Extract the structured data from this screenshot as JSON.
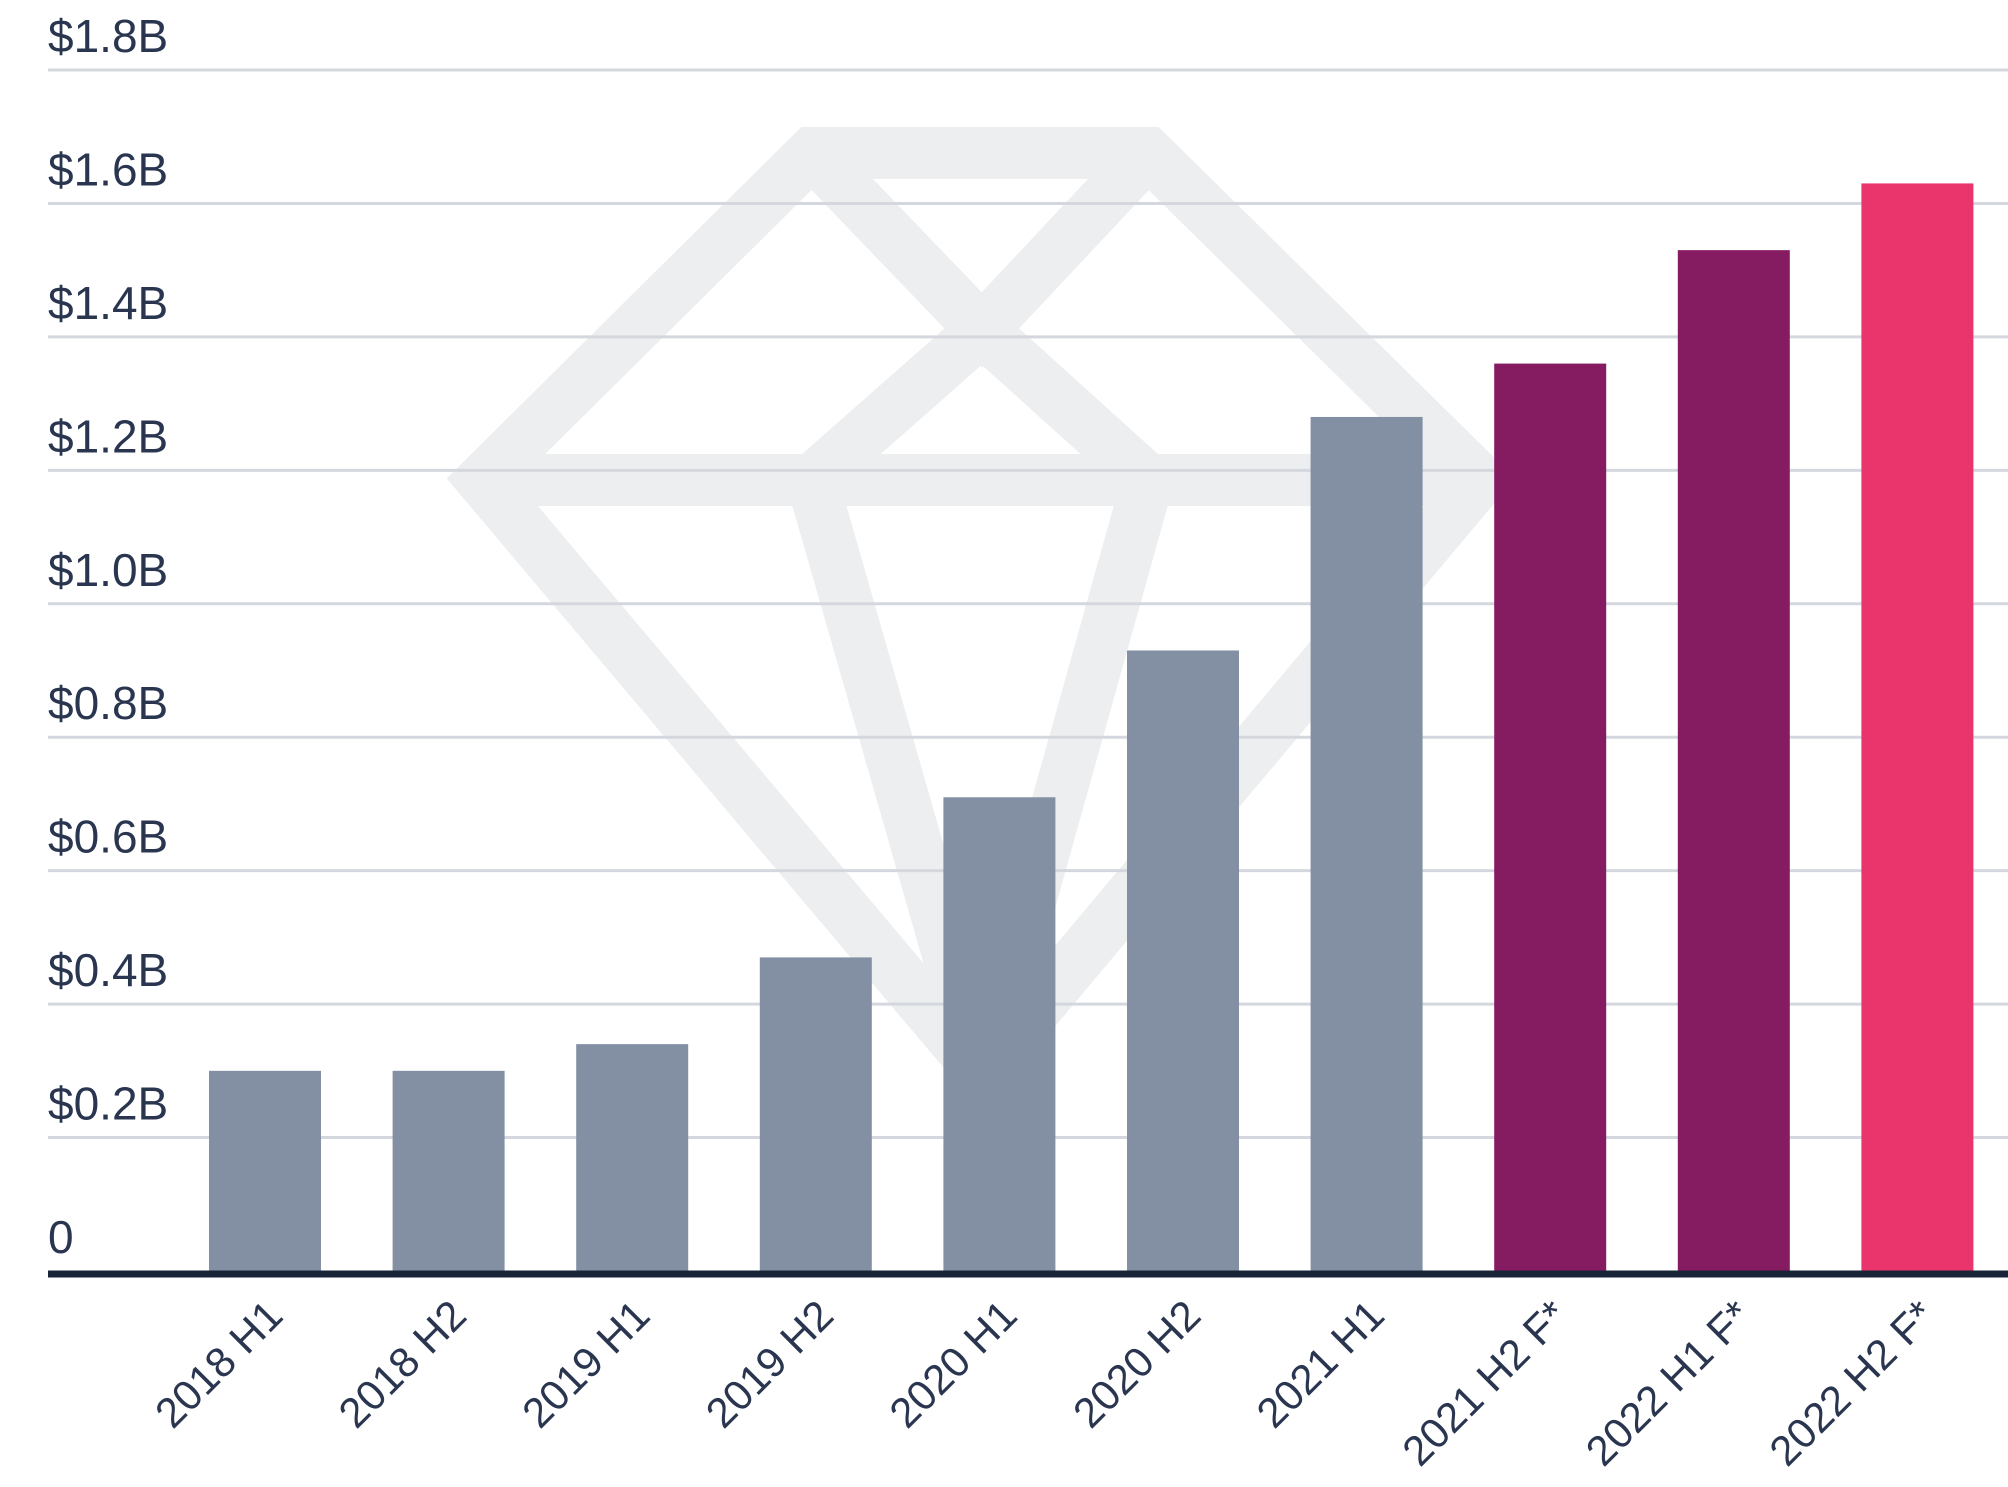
{
  "chart_data": {
    "type": "bar",
    "title": "",
    "xlabel": "",
    "ylabel": "",
    "ylim": [
      0,
      1.8
    ],
    "yticks": [
      {
        "value": 0,
        "label": "0"
      },
      {
        "value": 0.2,
        "label": "$0.2B"
      },
      {
        "value": 0.4,
        "label": "$0.4B"
      },
      {
        "value": 0.6,
        "label": "$0.6B"
      },
      {
        "value": 0.8,
        "label": "$0.8B"
      },
      {
        "value": 1.0,
        "label": "$1.0B"
      },
      {
        "value": 1.2,
        "label": "$1.2B"
      },
      {
        "value": 1.4,
        "label": "$1.4B"
      },
      {
        "value": 1.6,
        "label": "$1.6B"
      },
      {
        "value": 1.8,
        "label": "$1.8B"
      }
    ],
    "grid": true,
    "legend": "none",
    "categories": [
      "2018 H1",
      "2018 H2",
      "2019 H1",
      "2019 H2",
      "2020 H1",
      "2020 H2",
      "2021 H1",
      "2021 H2 F*",
      "2022 H1 F*",
      "2022 H2 F*"
    ],
    "values": [
      0.3,
      0.3,
      0.34,
      0.47,
      0.71,
      0.93,
      1.28,
      1.36,
      1.53,
      1.63
    ],
    "bar_colors": [
      "#838fa2",
      "#838fa2",
      "#838fa2",
      "#838fa2",
      "#838fa2",
      "#838fa2",
      "#838fa2",
      "#851b61",
      "#851b61",
      "#ea346c"
    ],
    "watermark_icon": "diamond-icon"
  }
}
